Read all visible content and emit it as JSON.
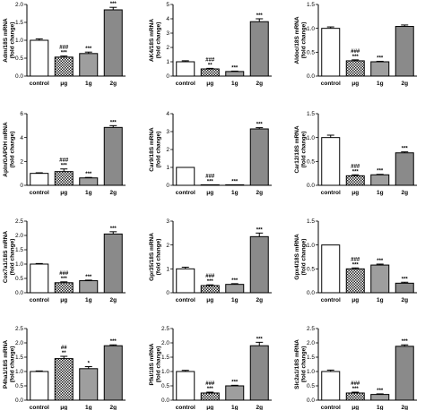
{
  "chart_data": [
    {
      "type": "bar",
      "ylabel": [
        "Adm/18S mRNA",
        "(fold change)"
      ],
      "ylim": [
        0,
        2
      ],
      "yticks": [
        "0.0",
        "0.5",
        "1.0",
        "1.5",
        "2.0"
      ],
      "categories": [
        "control",
        "μg",
        "1g",
        "2g"
      ],
      "values": [
        1.0,
        0.53,
        0.63,
        1.85
      ],
      "errors": [
        0.04,
        0.03,
        0.04,
        0.07
      ],
      "sig": [
        [],
        [
          "###",
          "***"
        ],
        [
          "***"
        ],
        [
          "***"
        ]
      ]
    },
    {
      "type": "bar",
      "ylabel": [
        "AK4/18S mRNA",
        "(fold change)"
      ],
      "ylim": [
        0,
        5
      ],
      "yticks": [
        "0",
        "1",
        "2",
        "3",
        "4",
        "5"
      ],
      "categories": [
        "control",
        "μg",
        "1g",
        "2g"
      ],
      "values": [
        1.0,
        0.5,
        0.32,
        3.8
      ],
      "errors": [
        0.07,
        0.04,
        0.03,
        0.2
      ],
      "sig": [
        [],
        [
          "###",
          "**"
        ],
        [
          "***"
        ],
        [
          "***"
        ]
      ]
    },
    {
      "type": "bar",
      "ylabel": [
        "Aldoc/18S mRNA",
        "(fold change)"
      ],
      "ylim": [
        0,
        1.5
      ],
      "yticks": [
        "0.0",
        "0.5",
        "1.0",
        "1.5"
      ],
      "categories": [
        "control",
        "μg",
        "1g",
        "2g"
      ],
      "values": [
        1.0,
        0.32,
        0.3,
        1.04
      ],
      "errors": [
        0.03,
        0.02,
        0.01,
        0.03
      ],
      "sig": [
        [],
        [
          "###",
          "***"
        ],
        [
          "***"
        ],
        []
      ]
    },
    {
      "type": "bar",
      "ylabel": [
        "Apln/GAPDH mRNA",
        "(fold change)"
      ],
      "ylim": [
        0,
        6
      ],
      "yticks": [
        "0",
        "2",
        "4",
        "6"
      ],
      "categories": [
        "control",
        "μg",
        "1g",
        "2g"
      ],
      "values": [
        1.0,
        1.15,
        0.62,
        4.85
      ],
      "errors": [
        0.05,
        0.22,
        0.04,
        0.15
      ],
      "sig": [
        [],
        [
          "###",
          "***"
        ],
        [
          "***"
        ],
        [
          "***"
        ]
      ]
    },
    {
      "type": "bar",
      "ylabel": [
        "Car9/18S mRNA",
        "(fold change)"
      ],
      "ylim": [
        0,
        4
      ],
      "yticks": [
        "0",
        "1",
        "2",
        "3",
        "4"
      ],
      "categories": [
        "control",
        "μg",
        "1g",
        "2g"
      ],
      "values": [
        1.0,
        0.02,
        0.02,
        3.15
      ],
      "errors": [
        0.0,
        0.0,
        0.0,
        0.07
      ],
      "sig": [
        [],
        [
          "###",
          "***"
        ],
        [
          "***"
        ],
        [
          "***"
        ]
      ]
    },
    {
      "type": "bar",
      "ylabel": [
        "Car12/18S mRNA",
        "(fold change)"
      ],
      "ylim": [
        0,
        1.5
      ],
      "yticks": [
        "0.0",
        "0.5",
        "1.0",
        "1.5"
      ],
      "categories": [
        "control",
        "μg",
        "1g",
        "2g"
      ],
      "values": [
        1.0,
        0.2,
        0.22,
        0.68
      ],
      "errors": [
        0.05,
        0.02,
        0.01,
        0.02
      ],
      "sig": [
        [],
        [
          "###",
          "***"
        ],
        [
          "***"
        ],
        [
          "***"
        ]
      ]
    },
    {
      "type": "bar",
      "ylabel": [
        "Cox7a1/18S mRNA",
        "(fold change)"
      ],
      "ylim": [
        0,
        2.5
      ],
      "yticks": [
        "0.0",
        "0.5",
        "1.0",
        "1.5",
        "2.0",
        "2.5"
      ],
      "categories": [
        "control",
        "μg",
        "1g",
        "2g"
      ],
      "values": [
        1.0,
        0.35,
        0.42,
        2.05
      ],
      "errors": [
        0.02,
        0.03,
        0.02,
        0.08
      ],
      "sig": [
        [],
        [
          "###",
          "***"
        ],
        [
          "***"
        ],
        [
          "***"
        ]
      ]
    },
    {
      "type": "bar",
      "ylabel": [
        "Gpr35/18S mRNA",
        "(fold change)"
      ],
      "ylim": [
        0,
        3
      ],
      "yticks": [
        "0",
        "1",
        "2",
        "3"
      ],
      "categories": [
        "control",
        "μg",
        "1g",
        "2g"
      ],
      "values": [
        1.0,
        0.3,
        0.35,
        2.35
      ],
      "errors": [
        0.07,
        0.03,
        0.03,
        0.15
      ],
      "sig": [
        [],
        [
          "###",
          "***"
        ],
        [
          "***"
        ],
        [
          "***"
        ]
      ]
    },
    {
      "type": "bar",
      "ylabel": [
        "Gpx4/18S mRNA",
        "(fold change)"
      ],
      "ylim": [
        0,
        1.5
      ],
      "yticks": [
        "0.0",
        "0.5",
        "1.0",
        "1.5"
      ],
      "categories": [
        "control",
        "μg",
        "1g",
        "2g"
      ],
      "values": [
        1.0,
        0.5,
        0.58,
        0.2
      ],
      "errors": [
        0.0,
        0.02,
        0.02,
        0.02
      ],
      "sig": [
        [],
        [
          "###",
          "***"
        ],
        [
          "***"
        ],
        [
          "***"
        ]
      ]
    },
    {
      "type": "bar",
      "ylabel": [
        "P4ha1/18S mRNA",
        "(fold change)"
      ],
      "ylim": [
        0,
        2.5
      ],
      "yticks": [
        "0.0",
        "0.5",
        "1.0",
        "1.5",
        "2.0",
        "2.5"
      ],
      "categories": [
        "control",
        "μg",
        "1g",
        "2g"
      ],
      "values": [
        1.0,
        1.45,
        1.1,
        1.9
      ],
      "errors": [
        0.02,
        0.08,
        0.07,
        0.03
      ],
      "sig": [
        [],
        [
          "##",
          "**"
        ],
        [
          "*"
        ],
        [
          "***"
        ]
      ]
    },
    {
      "type": "bar",
      "ylabel": [
        "Pfkl/18S mRNA",
        "(fold change)"
      ],
      "ylim": [
        0,
        2.5
      ],
      "yticks": [
        "0.0",
        "0.5",
        "1.0",
        "1.5",
        "2.0",
        "2.5"
      ],
      "categories": [
        "control",
        "μg",
        "1g",
        "2g"
      ],
      "values": [
        1.0,
        0.25,
        0.5,
        1.9
      ],
      "errors": [
        0.04,
        0.03,
        0.02,
        0.12
      ],
      "sig": [
        [],
        [
          "###",
          "***"
        ],
        [
          "***"
        ],
        [
          "***"
        ]
      ]
    },
    {
      "type": "bar",
      "ylabel": [
        "Slc2a1/18S mRNA",
        "(fold change)"
      ],
      "ylim": [
        0,
        2.5
      ],
      "yticks": [
        "0.0",
        "0.5",
        "1.0",
        "1.5",
        "2.0",
        "2.5"
      ],
      "categories": [
        "control",
        "μg",
        "1g",
        "2g"
      ],
      "values": [
        1.0,
        0.25,
        0.2,
        1.88
      ],
      "errors": [
        0.05,
        0.03,
        0.02,
        0.05
      ],
      "sig": [
        [],
        [
          "###",
          "***"
        ],
        [
          "***"
        ],
        [
          "***"
        ]
      ]
    }
  ],
  "colors": {
    "control": "#ffffff",
    "ug": "checker",
    "g1": "#9e9e9e",
    "g2": "#8a8a8a",
    "ink": "#000000"
  }
}
